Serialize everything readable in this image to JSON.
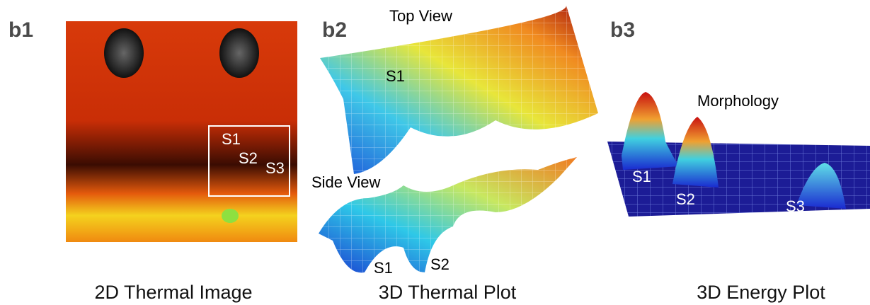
{
  "panels": [
    {
      "label": "b1",
      "caption": "2D Thermal Image",
      "annotations": [
        "S1",
        "S2",
        "S3"
      ]
    },
    {
      "label": "b2",
      "caption": "3D Thermal Plot",
      "views": [
        {
          "title": "Top View",
          "annotations": [
            "S1"
          ]
        },
        {
          "title": "Side View",
          "annotations": [
            "S1",
            "S2"
          ]
        }
      ]
    },
    {
      "label": "b3",
      "caption": "3D Energy Plot",
      "title": "Morphology",
      "annotations": [
        "S1",
        "S2",
        "S3"
      ]
    }
  ]
}
